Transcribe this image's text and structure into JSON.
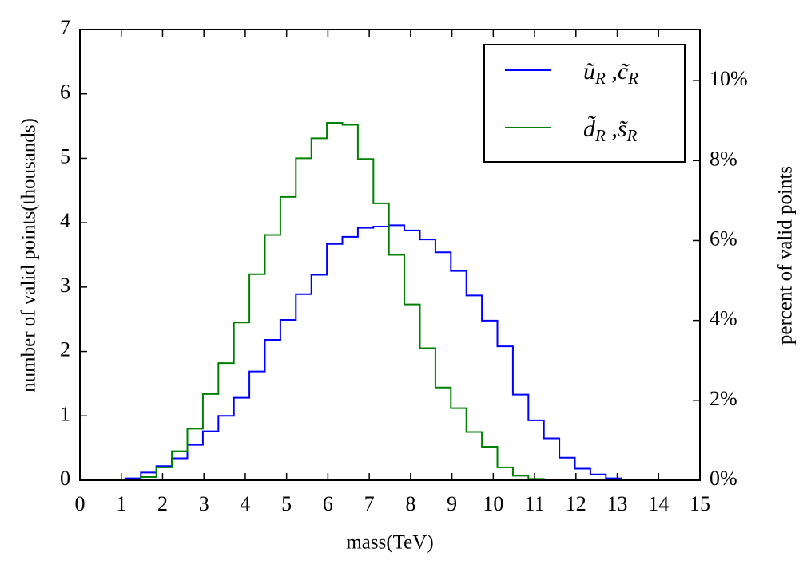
{
  "chart_data": {
    "type": "histogram",
    "xlabel": "mass(TeV)",
    "ylabel": "number of valid points(thousands)",
    "y2label": "percent of valid points",
    "bins": [
      1.1,
      1.475,
      1.85,
      2.225,
      2.6,
      2.975,
      3.35,
      3.725,
      4.1,
      4.475,
      4.85,
      5.225,
      5.6,
      5.975,
      6.35,
      6.725,
      7.1,
      7.475,
      7.85,
      8.225,
      8.6,
      8.975,
      9.35,
      9.725,
      10.1,
      10.475,
      10.85,
      11.225,
      11.6,
      11.975,
      12.35,
      12.725,
      13.1
    ],
    "series": [
      {
        "name": "ũ_R ,c̃_R",
        "color": "#0000ff",
        "values": [
          0.03,
          0.12,
          0.22,
          0.34,
          0.55,
          0.76,
          1.0,
          1.28,
          1.69,
          2.18,
          2.49,
          2.89,
          3.19,
          3.67,
          3.78,
          3.92,
          3.94,
          3.96,
          3.88,
          3.74,
          3.54,
          3.25,
          2.87,
          2.48,
          2.08,
          1.33,
          0.93,
          0.65,
          0.35,
          0.18,
          0.09,
          0.03
        ]
      },
      {
        "name": "d̃_R ,s̃_R",
        "color": "#008000",
        "values": [
          0.01,
          0.05,
          0.2,
          0.45,
          0.8,
          1.34,
          1.82,
          2.45,
          3.2,
          3.81,
          4.4,
          5.0,
          5.31,
          5.55,
          5.52,
          4.99,
          4.3,
          3.5,
          2.73,
          2.05,
          1.44,
          1.12,
          0.75,
          0.52,
          0.2,
          0.07,
          0.02,
          0.01,
          0,
          0,
          0,
          0
        ]
      }
    ],
    "xlim": [
      0,
      15
    ],
    "xticks": [
      0,
      1,
      2,
      3,
      4,
      5,
      6,
      7,
      8,
      9,
      10,
      11,
      12,
      13,
      14,
      15
    ],
    "ylim": [
      0,
      7
    ],
    "yticks": [
      0,
      1,
      2,
      3,
      4,
      5,
      6,
      7
    ],
    "y2lim": [
      0,
      11.28
    ],
    "y2ticks": [
      {
        "value": 0,
        "label": "0%"
      },
      {
        "value": 2,
        "label": "2%"
      },
      {
        "value": 4,
        "label": "4%"
      },
      {
        "value": 6,
        "label": "6%"
      },
      {
        "value": 8,
        "label": "8%"
      },
      {
        "value": 10,
        "label": "10%"
      }
    ],
    "legend": "upper right",
    "grid": false
  }
}
